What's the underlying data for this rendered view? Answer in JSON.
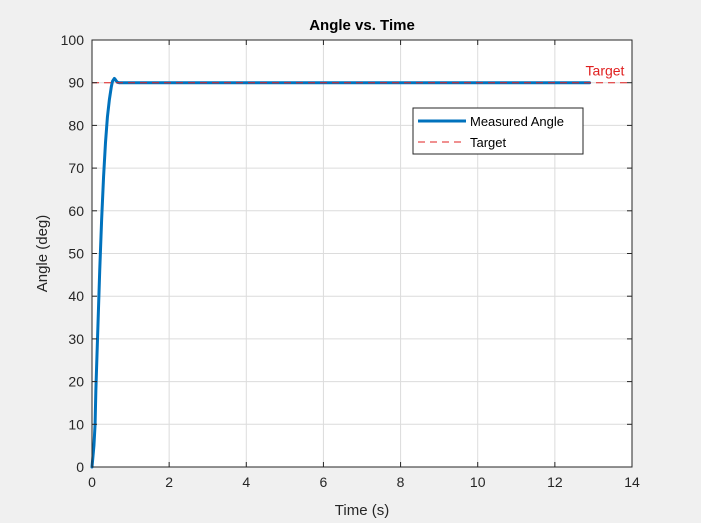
{
  "chart_data": {
    "type": "line",
    "title": "Angle vs. Time",
    "xlabel": "Time (s)",
    "ylabel": "Angle (deg)",
    "xlim": [
      0,
      14
    ],
    "ylim": [
      0,
      100
    ],
    "xticks": [
      0,
      2,
      4,
      6,
      8,
      10,
      12,
      14
    ],
    "yticks": [
      0,
      10,
      20,
      30,
      40,
      50,
      60,
      70,
      80,
      90,
      100
    ],
    "grid": true,
    "legend_position": "top-right",
    "series": [
      {
        "name": "Measured Angle",
        "color": "#0072bd",
        "style": "solid",
        "x": [
          0,
          0.02,
          0.05,
          0.08,
          0.1,
          0.15,
          0.2,
          0.25,
          0.3,
          0.35,
          0.4,
          0.45,
          0.5,
          0.53,
          0.55,
          0.58,
          0.6,
          0.63,
          0.66,
          0.7,
          0.8,
          1,
          2,
          4,
          6,
          8,
          10,
          12,
          12.9
        ],
        "values": [
          0,
          2,
          5,
          10,
          18,
          32,
          46,
          58,
          68,
          76,
          82,
          86,
          89,
          90.3,
          90.6,
          91,
          90.8,
          90.4,
          90.1,
          90,
          90,
          90,
          90,
          90,
          90,
          90,
          90,
          90,
          90
        ]
      },
      {
        "name": "Target",
        "color": "#e02020",
        "style": "dashed",
        "x": [
          0,
          14
        ],
        "values": [
          90,
          90
        ]
      }
    ],
    "annotations": [
      {
        "text": "Target",
        "x": 13.3,
        "y": 90,
        "color": "#e02020"
      }
    ]
  }
}
